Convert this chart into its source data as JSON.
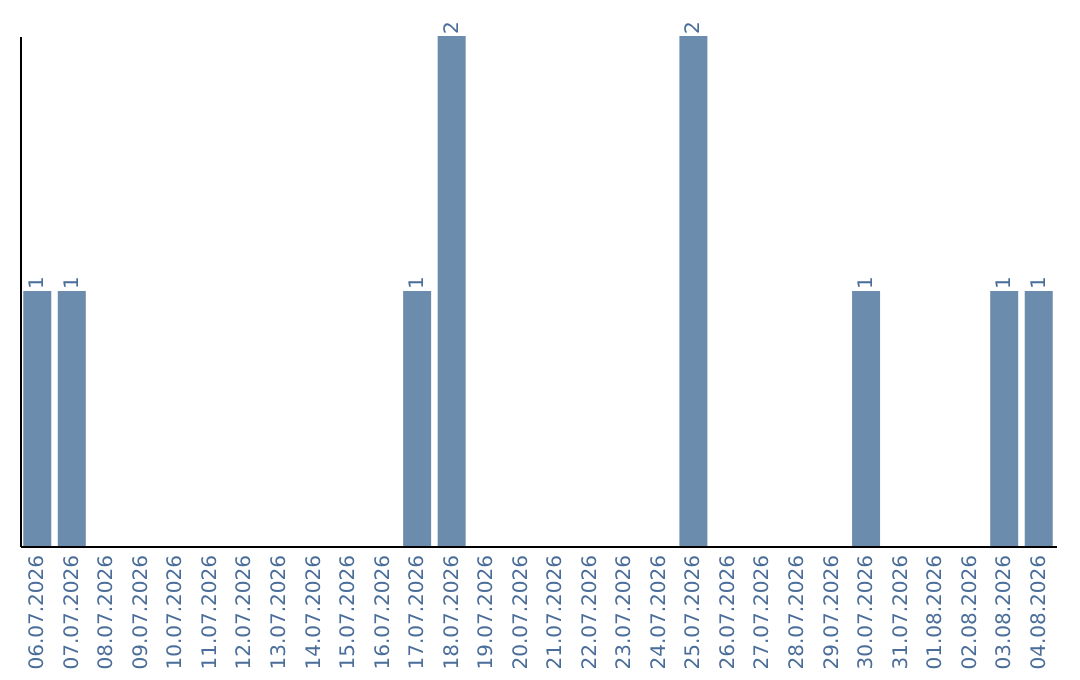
{
  "chart_data": {
    "type": "bar",
    "categories": [
      "06.07.2026",
      "07.07.2026",
      "08.07.2026",
      "09.07.2026",
      "10.07.2026",
      "11.07.2026",
      "12.07.2026",
      "13.07.2026",
      "14.07.2026",
      "15.07.2026",
      "16.07.2026",
      "17.07.2026",
      "18.07.2026",
      "19.07.2026",
      "20.07.2026",
      "21.07.2026",
      "22.07.2026",
      "23.07.2026",
      "24.07.2026",
      "25.07.2026",
      "26.07.2026",
      "27.07.2026",
      "28.07.2026",
      "29.07.2026",
      "30.07.2026",
      "31.07.2026",
      "01.08.2026",
      "02.08.2026",
      "03.08.2026",
      "04.08.2026"
    ],
    "values": [
      1,
      1,
      0,
      0,
      0,
      0,
      0,
      0,
      0,
      0,
      0,
      1,
      2,
      0,
      0,
      0,
      0,
      0,
      0,
      2,
      0,
      0,
      0,
      0,
      1,
      0,
      0,
      0,
      1,
      1
    ],
    "value_labels": [
      "1",
      "1",
      null,
      null,
      null,
      null,
      null,
      null,
      null,
      null,
      null,
      "1",
      "2",
      null,
      null,
      null,
      null,
      null,
      null,
      "2",
      null,
      null,
      null,
      null,
      "1",
      null,
      null,
      null,
      "1",
      "1"
    ],
    "color": "#6b8cac",
    "ylim": [
      0,
      2
    ],
    "tick_labels": "x",
    "grid": false
  }
}
